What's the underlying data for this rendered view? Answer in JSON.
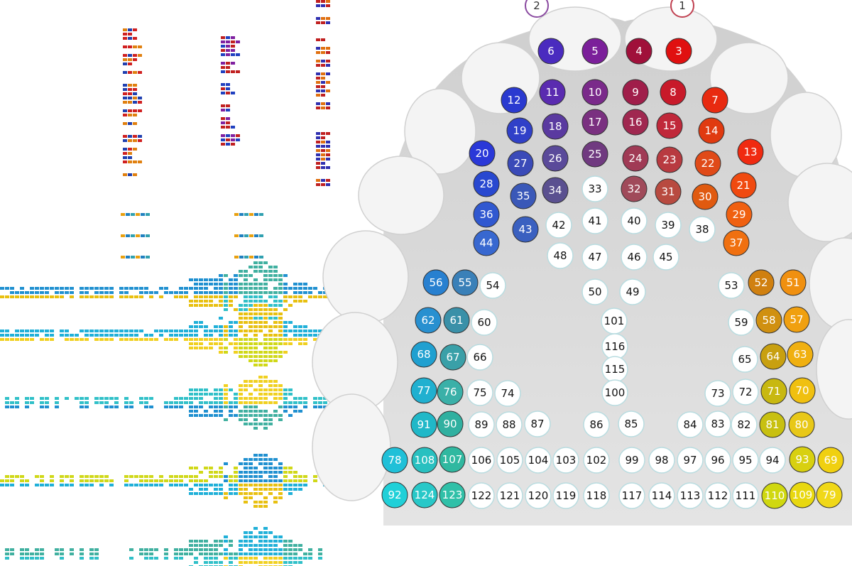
{
  "top_markers": [
    "2",
    "1"
  ],
  "nodes": [
    "6",
    "5",
    "4",
    "3",
    "12",
    "11",
    "10",
    "9",
    "8",
    "7",
    "19",
    "18",
    "17",
    "16",
    "15",
    "14",
    "20",
    "27",
    "26",
    "25",
    "24",
    "23",
    "22",
    "13",
    "28",
    "35",
    "34",
    "33",
    "32",
    "31",
    "30",
    "21",
    "36",
    "43",
    "42",
    "41",
    "40",
    "39",
    "38",
    "29",
    "44",
    "37",
    "48",
    "47",
    "46",
    "45",
    "56",
    "55",
    "54",
    "50",
    "49",
    "53",
    "52",
    "51",
    "62",
    "61",
    "60",
    "101",
    "59",
    "58",
    "57",
    "116",
    "68",
    "67",
    "66",
    "115",
    "65",
    "64",
    "63",
    "77",
    "76",
    "75",
    "74",
    "100",
    "73",
    "72",
    "71",
    "70",
    "91",
    "90",
    "89",
    "88",
    "87",
    "86",
    "85",
    "84",
    "83",
    "82",
    "81",
    "80",
    "78",
    "108",
    "107",
    "106",
    "105",
    "104",
    "103",
    "102",
    "99",
    "98",
    "97",
    "96",
    "95",
    "94",
    "93",
    "69",
    "92",
    "124",
    "123",
    "122",
    "121",
    "120",
    "119",
    "118",
    "117",
    "114",
    "113",
    "112",
    "111",
    "110",
    "109",
    "79"
  ]
}
